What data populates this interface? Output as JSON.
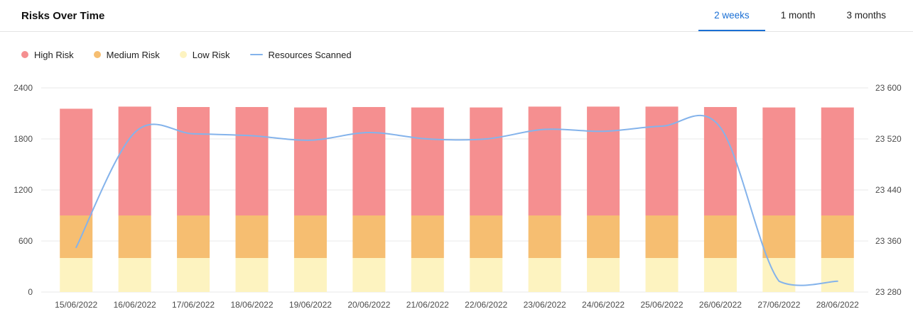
{
  "header": {
    "title": "Risks Over Time",
    "tabs": [
      {
        "label": "2 weeks",
        "active": true
      },
      {
        "label": "1 month",
        "active": false
      },
      {
        "label": "3 months",
        "active": false
      }
    ]
  },
  "legend": [
    {
      "label": "High Risk",
      "type": "dot",
      "color": "#f58f90"
    },
    {
      "label": "Medium Risk",
      "type": "dot",
      "color": "#f6be71"
    },
    {
      "label": "Low Risk",
      "type": "dot",
      "color": "#fdf3c0"
    },
    {
      "label": "Resources Scanned",
      "type": "line",
      "color": "#84b3eb"
    }
  ],
  "chart_data": {
    "type": "bar",
    "title": "Risks Over Time",
    "categories": [
      "15/06/2022",
      "16/06/2022",
      "17/06/2022",
      "18/06/2022",
      "19/06/2022",
      "20/06/2022",
      "21/06/2022",
      "22/06/2022",
      "23/06/2022",
      "24/06/2022",
      "25/06/2022",
      "26/06/2022",
      "27/06/2022",
      "28/06/2022"
    ],
    "series": [
      {
        "name": "Low Risk",
        "type": "bar",
        "color": "#fdf3c0",
        "values": [
          400,
          400,
          400,
          400,
          400,
          400,
          400,
          400,
          400,
          400,
          400,
          400,
          400,
          400
        ]
      },
      {
        "name": "Medium Risk",
        "type": "bar",
        "color": "#f6be71",
        "values": [
          500,
          500,
          500,
          500,
          500,
          500,
          500,
          500,
          500,
          500,
          500,
          500,
          500,
          500
        ]
      },
      {
        "name": "High Risk",
        "type": "bar",
        "color": "#f58f90",
        "values": [
          1255,
          1280,
          1275,
          1275,
          1270,
          1275,
          1270,
          1270,
          1280,
          1280,
          1280,
          1275,
          1270,
          1270
        ]
      },
      {
        "name": "Resources Scanned",
        "type": "line",
        "color": "#84b3eb",
        "axis": "right",
        "values": [
          23350,
          23530,
          23528,
          23525,
          23518,
          23530,
          23520,
          23520,
          23535,
          23532,
          23540,
          23538,
          23297,
          23297
        ]
      }
    ],
    "left_axis": {
      "ticks": [
        0,
        600,
        1200,
        1800,
        2400
      ],
      "range": [
        0,
        2400
      ]
    },
    "right_axis": {
      "tick_labels": [
        "23 280",
        "23 360",
        "23 440",
        "23 520",
        "23 600"
      ],
      "tick_values": [
        23280,
        23360,
        23440,
        23520,
        23600
      ],
      "range": [
        23280,
        23600
      ]
    },
    "grid": true,
    "legend_position": "top-left",
    "bar_mode": "stacked"
  }
}
